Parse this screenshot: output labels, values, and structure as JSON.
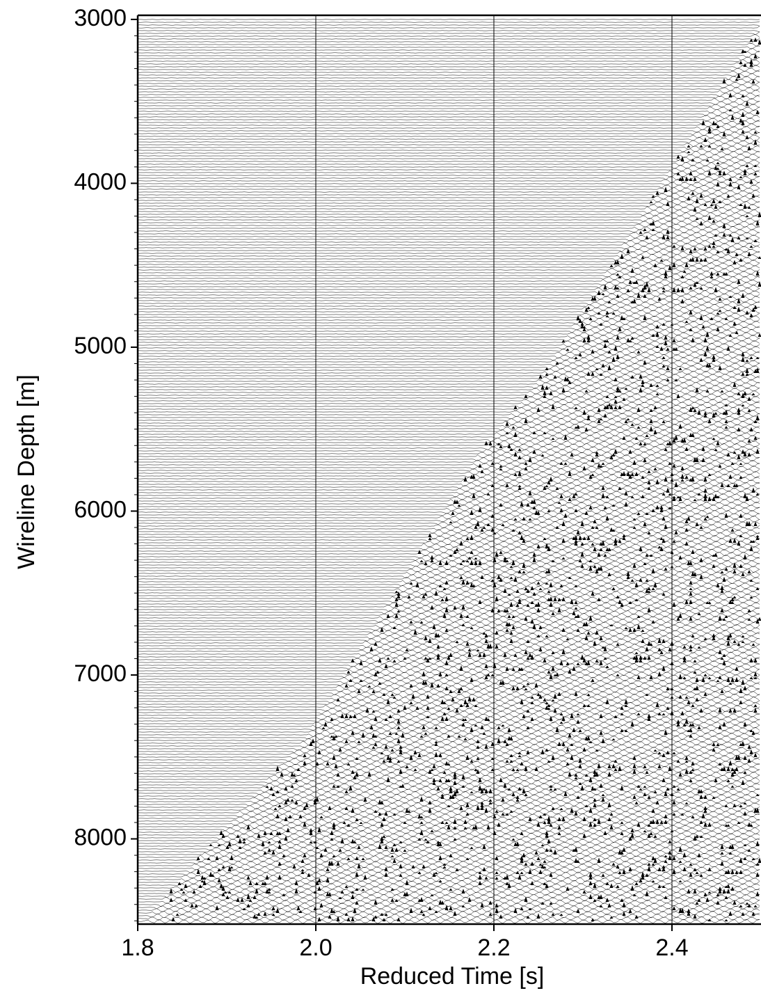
{
  "chart_data": {
    "type": "wiggle",
    "xlabel": "Reduced Time [s]",
    "ylabel": "Wireline Depth [m]",
    "xlim": [
      1.8,
      2.5
    ],
    "xticks": [
      1.8,
      {
        "value": 2,
        "label": "2.0"
      },
      2.2,
      2.4
    ],
    "ylim": [
      2975,
      8520
    ],
    "yinverted": true,
    "yticks": [
      3000,
      4000,
      5000,
      6000,
      7000,
      8000
    ],
    "xgrid": true,
    "color": "#000000"
  }
}
